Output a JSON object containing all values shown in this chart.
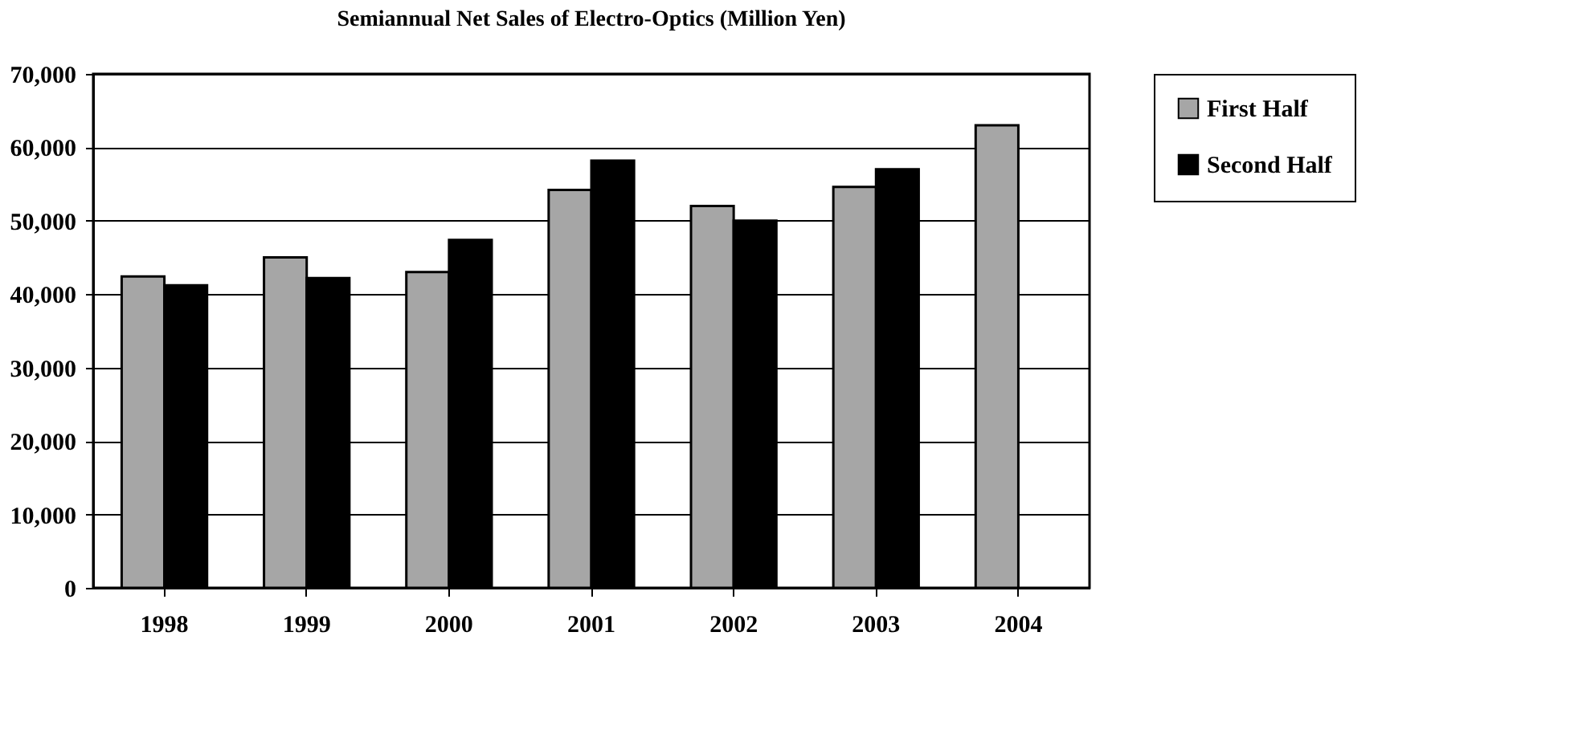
{
  "chart_data": {
    "type": "bar",
    "title": "Semiannual Net Sales of Electro-Optics (Million Yen)",
    "categories": [
      "1998",
      "1999",
      "2000",
      "2001",
      "2002",
      "2003",
      "2004"
    ],
    "series": [
      {
        "name": "First Half",
        "color": "#a6a6a6",
        "values": [
          42400,
          45000,
          43000,
          54200,
          52000,
          54600,
          63000
        ]
      },
      {
        "name": "Second Half",
        "color": "#000000",
        "values": [
          41200,
          42200,
          47400,
          58200,
          50000,
          57000,
          null
        ]
      }
    ],
    "ylim": [
      0,
      70000
    ],
    "yticks": [
      0,
      {
        "value": 10000,
        "label": "10,000"
      },
      {
        "value": 20000,
        "label": "20,000"
      },
      {
        "value": 30000,
        "label": "30,000"
      },
      {
        "value": 40000,
        "label": "40,000"
      },
      {
        "value": 50000,
        "label": "50,000"
      },
      {
        "value": 60000,
        "label": "60,000"
      },
      {
        "value": 70000,
        "label": "70,000"
      }
    ],
    "grid": "y",
    "legend": "right"
  }
}
